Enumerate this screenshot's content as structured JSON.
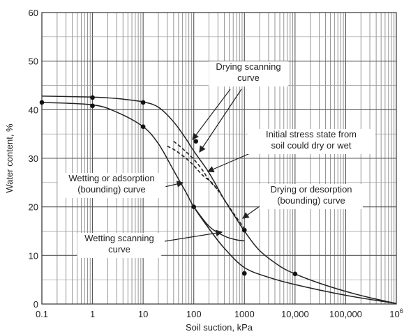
{
  "chart_data": {
    "type": "line",
    "title": "",
    "xlabel": "Soil suction, kPa",
    "ylabel": "Water content, %",
    "x_scale": "log",
    "xlim": [
      0.1,
      1000000
    ],
    "ylim": [
      0,
      60
    ],
    "grid": true,
    "x_ticks": [
      {
        "value": 0.1,
        "label": "0.1"
      },
      {
        "value": 1,
        "label": "1"
      },
      {
        "value": 10,
        "label": "10"
      },
      {
        "value": 100,
        "label": "100"
      },
      {
        "value": 1000,
        "label": "1000"
      },
      {
        "value": 10000,
        "label": "10,000"
      },
      {
        "value": 100000,
        "label": "100,000"
      },
      {
        "value": 1000000,
        "label": "10",
        "sup": "6"
      }
    ],
    "y_ticks": [
      {
        "value": 0,
        "label": "0"
      },
      {
        "value": 10,
        "label": "10"
      },
      {
        "value": 20,
        "label": "20"
      },
      {
        "value": 30,
        "label": "30"
      },
      {
        "value": 40,
        "label": "40"
      },
      {
        "value": 50,
        "label": "50"
      },
      {
        "value": 60,
        "label": "60"
      }
    ],
    "series": [
      {
        "id": "drying",
        "style": "solid",
        "x": [
          0.1,
          1,
          3,
          10,
          20,
          40,
          70,
          100,
          200,
          400,
          700,
          1000,
          2000,
          5000,
          10000,
          30000,
          100000,
          300000,
          1000000
        ],
        "y": [
          42.8,
          42.6,
          42.3,
          41.6,
          40.5,
          37.5,
          34.0,
          31.5,
          27.0,
          21.5,
          17.5,
          15.0,
          11.0,
          7.8,
          6.2,
          4.3,
          2.6,
          1.3,
          0.1
        ],
        "markers": [
          [
            1,
            42.5
          ],
          [
            10,
            41.5
          ],
          [
            1000,
            15.2
          ],
          [
            10000,
            6.2
          ]
        ]
      },
      {
        "id": "wetting",
        "style": "solid",
        "x": [
          0.1,
          1,
          3,
          10,
          20,
          40,
          70,
          100,
          200,
          400,
          1000,
          3000,
          10000,
          100000,
          1000000
        ],
        "y": [
          41.5,
          41.0,
          39.5,
          36.5,
          33.0,
          27.5,
          23.0,
          20.0,
          15.5,
          11.5,
          7.5,
          5.5,
          4.0,
          1.8,
          0.1
        ],
        "markers": [
          [
            0.1,
            41.5
          ],
          [
            1,
            40.8
          ],
          [
            10,
            36.5
          ],
          [
            100,
            20.0
          ],
          [
            1000,
            6.3
          ]
        ]
      },
      {
        "id": "wetting-scanning",
        "style": "solid",
        "x": [
          100,
          200,
          400,
          700,
          1000
        ],
        "y": [
          20.0,
          16.0,
          14.0,
          13.2,
          13.0
        ],
        "markers": []
      },
      {
        "id": "drying-scanning-1",
        "style": "dashed",
        "x": [
          40,
          60,
          100,
          150,
          200,
          300
        ],
        "y": [
          33.5,
          32.0,
          29.8,
          27.5,
          25.5,
          23.5
        ],
        "markers": []
      },
      {
        "id": "drying-scanning-2",
        "style": "dashed",
        "x": [
          30,
          45,
          70,
          100,
          150,
          250,
          500,
          1000
        ],
        "y": [
          32.5,
          31.5,
          30.0,
          28.5,
          26.5,
          24.5,
          20.0,
          15.5
        ],
        "markers": []
      }
    ],
    "extra_markers": [
      [
        110,
        33.5
      ]
    ],
    "annotations": [
      {
        "id": "drying-scanning",
        "lines": [
          "Drying scanning",
          "curve"
        ]
      },
      {
        "id": "initial-stress",
        "lines": [
          "Initial stress state from",
          "soil could dry or wet"
        ]
      },
      {
        "id": "wetting-adsorption",
        "lines": [
          "Wetting or adsorption",
          "(bounding) curve"
        ]
      },
      {
        "id": "drying-desorption",
        "lines": [
          "Drying or desorption",
          "(bounding) curve"
        ]
      },
      {
        "id": "wetting-scanning",
        "lines": [
          "Wetting scanning",
          "curve"
        ]
      }
    ]
  }
}
